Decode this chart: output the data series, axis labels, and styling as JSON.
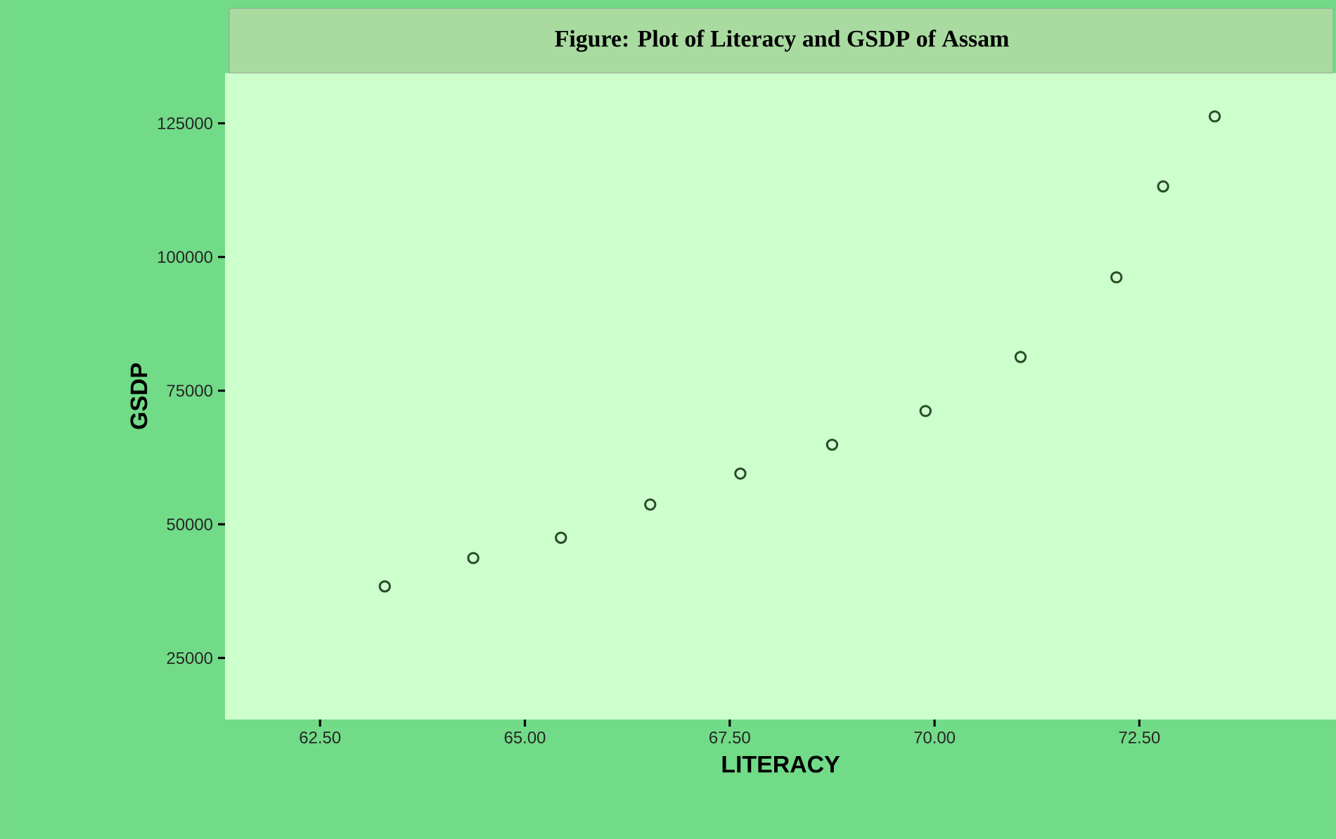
{
  "chart_data": {
    "type": "scatter",
    "title": "Figure: Plot of Literacy and GSDP of Assam",
    "xlabel": "LITERACY",
    "ylabel": "GSDP",
    "x": [
      63.29,
      64.37,
      65.44,
      66.53,
      67.63,
      68.75,
      69.89,
      71.05,
      72.22,
      72.79,
      73.42
    ],
    "values": [
      38400,
      43700,
      47500,
      53700,
      59500,
      64900,
      71200,
      81300,
      96200,
      113200,
      126300
    ],
    "color": "#2a4a2a",
    "marker": "circle",
    "grid": false,
    "xlim": [
      61.34,
      74.9
    ],
    "ylim": [
      13500,
      134400
    ],
    "xticks": [
      {
        "value": 62.5,
        "label": "62.50"
      },
      {
        "value": 65,
        "label": "65.00"
      },
      {
        "value": 67.5,
        "label": "67.50"
      },
      {
        "value": 70,
        "label": "70.00"
      },
      {
        "value": 72.5,
        "label": "72.50"
      }
    ],
    "yticks": [
      25000,
      50000,
      75000,
      100000,
      125000
    ]
  }
}
